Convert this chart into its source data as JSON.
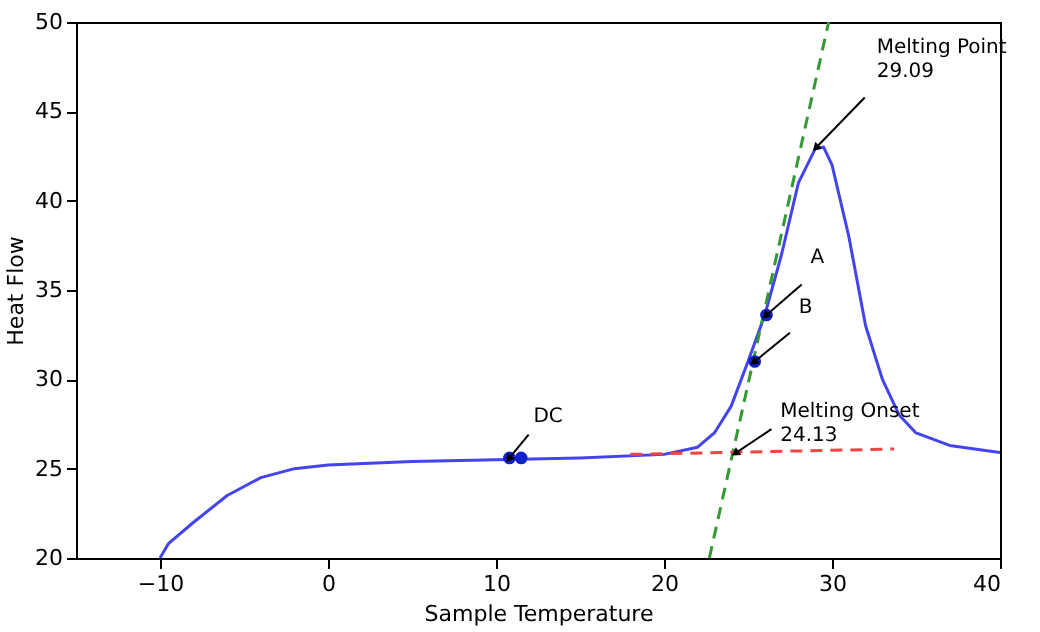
{
  "chart_data": {
    "type": "line",
    "xlabel": "Sample Temperature",
    "ylabel": "Heat Flow",
    "xlim": [
      -15,
      40
    ],
    "xticks": [
      -10,
      0,
      10,
      20,
      30,
      40
    ],
    "ylim": [
      20,
      50
    ],
    "yticks": [
      20,
      25,
      30,
      35,
      40,
      45,
      50
    ],
    "grid": false,
    "series": [
      {
        "color": "#4444ee",
        "line_style": "solid",
        "marker": "none",
        "x": [
          -10,
          -9.5,
          -8,
          -6,
          -4,
          -2,
          0,
          5,
          10,
          15,
          20,
          22,
          23,
          24,
          25,
          26,
          27,
          28,
          29,
          29.5,
          30,
          31,
          32,
          33,
          34,
          35,
          37,
          40
        ],
        "values": [
          20,
          20.8,
          22,
          23.5,
          24.5,
          25,
          25.2,
          25.4,
          25.5,
          25.6,
          25.8,
          26.2,
          27,
          28.5,
          31,
          33.6,
          37,
          41,
          42.9,
          43,
          42,
          38,
          33,
          30,
          28,
          27,
          26.3,
          25.9
        ]
      },
      {
        "type": "line",
        "color": "#339933",
        "line_style": "dashed",
        "marker": "none",
        "x": [
          22.7,
          29.8
        ],
        "values": [
          20,
          50
        ]
      },
      {
        "type": "line",
        "color": "#ee4444",
        "line_style": "dashed",
        "marker": "none",
        "x": [
          18,
          33.7
        ],
        "values": [
          25.8,
          26.1
        ]
      },
      {
        "type": "scatter",
        "color": "#1122cc",
        "marker": "circle",
        "x": [
          10.8,
          11.5,
          25.4,
          26.1
        ],
        "values": [
          25.6,
          25.6,
          31,
          33.6
        ]
      }
    ],
    "annotations": [
      {
        "text": "Melting Point\n29.09",
        "x": 29.09,
        "y": 43
      },
      {
        "text": "A",
        "x": 26.1,
        "y": 33.6
      },
      {
        "text": "B",
        "x": 25.4,
        "y": 31
      },
      {
        "text": "DC",
        "x": 10.8,
        "y": 25.6
      },
      {
        "text": "Melting Onset\n24.13",
        "x": 24.3,
        "y": 25.9
      }
    ]
  }
}
